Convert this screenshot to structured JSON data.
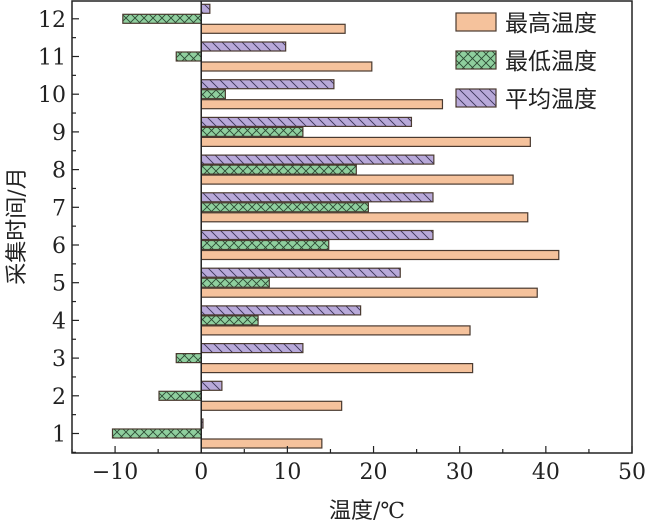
{
  "chart_data": {
    "type": "bar",
    "orientation": "horizontal",
    "title": "",
    "xlabel": "温度/℃",
    "ylabel": "采集时间/月",
    "xlim": [
      -15,
      50
    ],
    "xticks": [
      -10,
      0,
      10,
      20,
      30,
      40,
      50
    ],
    "categories": [
      "1",
      "2",
      "3",
      "4",
      "5",
      "6",
      "7",
      "8",
      "9",
      "10",
      "11",
      "12"
    ],
    "grid": false,
    "legend_position": "top-right",
    "series": [
      {
        "name": "最高温度",
        "color": "#f5c29c",
        "pattern": "solid",
        "values": [
          14.0,
          16.3,
          31.5,
          31.2,
          39.0,
          41.5,
          37.9,
          36.2,
          38.2,
          28.0,
          19.8,
          16.7
        ]
      },
      {
        "name": "最低温度",
        "color": "#8fcf9e",
        "pattern": "crosshatch",
        "values": [
          -10.3,
          -4.9,
          -2.9,
          6.6,
          7.9,
          14.8,
          19.4,
          18.0,
          11.8,
          2.8,
          -2.9,
          -9.1
        ]
      },
      {
        "name": "平均温度",
        "color": "#b8a9d9",
        "pattern": "diagonal",
        "values": [
          0.2,
          2.4,
          11.8,
          18.5,
          23.1,
          26.9,
          26.9,
          27.0,
          24.4,
          15.4,
          9.8,
          1.0
        ]
      }
    ]
  }
}
